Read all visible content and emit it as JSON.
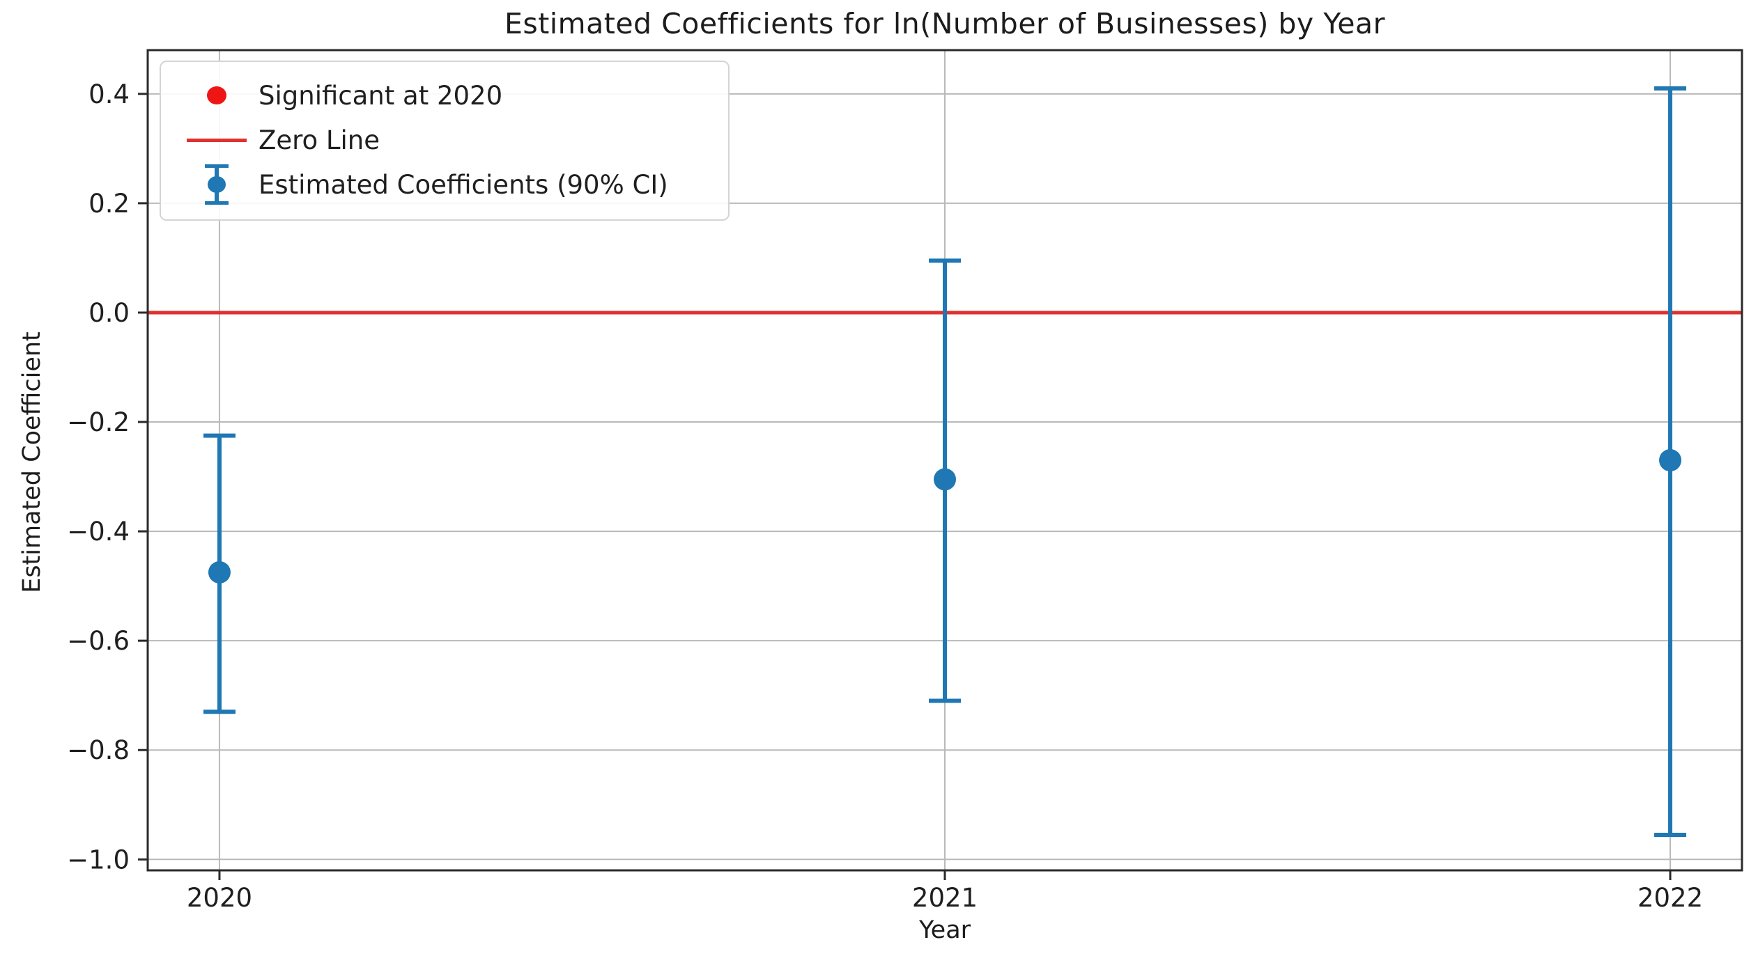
{
  "chart_data": {
    "type": "scatter",
    "subtype": "errorbar",
    "title": "Estimated Coefficients for ln(Number of Businesses) by Year",
    "xlabel": "Year",
    "ylabel": "Estimated Coefficient",
    "categories": [
      "2020",
      "2021",
      "2022"
    ],
    "series": [
      {
        "name": "Estimated Coefficients (90% CI)",
        "values": [
          -0.475,
          -0.305,
          -0.27
        ],
        "ci_low": [
          -0.73,
          -0.71,
          -0.955
        ],
        "ci_high": [
          -0.225,
          0.095,
          0.41
        ]
      }
    ],
    "zero_line": 0.0,
    "ylim": [
      -1.02,
      0.48
    ],
    "yticks": [
      0.4,
      0.2,
      0.0,
      -0.2,
      -0.4,
      -0.6,
      -0.8,
      -1.0
    ],
    "ytick_labels": [
      "0.4",
      "0.2",
      "0.0",
      "−0.2",
      "−0.4",
      "−0.6",
      "−0.8",
      "−1.0"
    ],
    "grid": true,
    "colors": {
      "point": "#1f77b4",
      "error_line": "#1f77b4",
      "zero_line": "#e03131",
      "significant_marker": "#f01515",
      "gridline": "#b9b9b9",
      "spine": "#2a2a2a",
      "text": "#1f1f1f"
    },
    "legend": {
      "position": "upper left",
      "items": [
        {
          "label": "Significant at 2020",
          "marker": "dot",
          "color": "#f01515"
        },
        {
          "label": "Zero Line",
          "marker": "line",
          "color": "#e03131"
        },
        {
          "label": "Estimated Coefficients (90% CI)",
          "marker": "errorbar",
          "color": "#1f77b4"
        }
      ]
    }
  }
}
